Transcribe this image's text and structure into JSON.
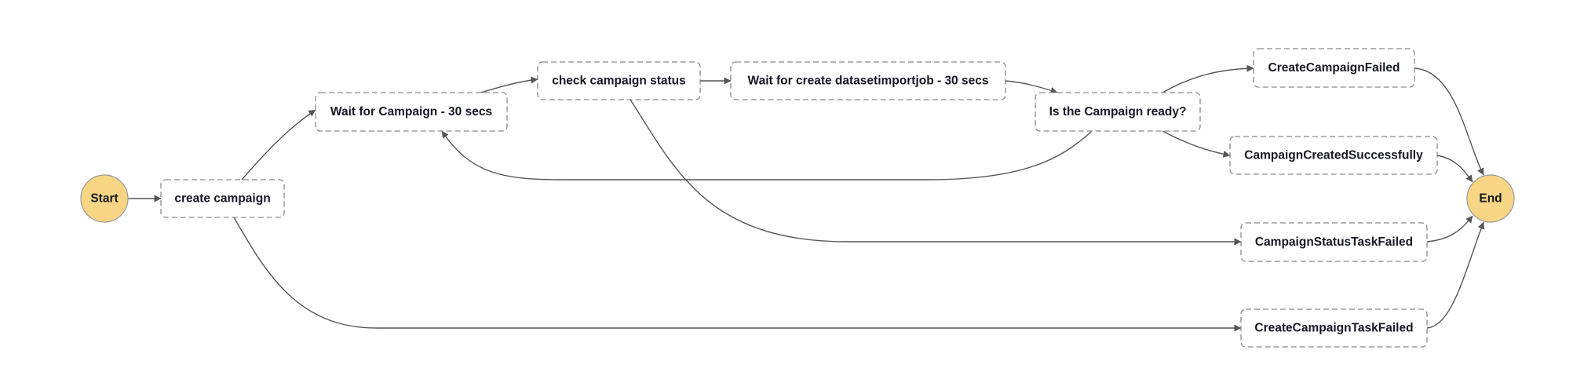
{
  "diagram": {
    "type": "state-machine-graph",
    "colors": {
      "terminal_fill": "#f7d584",
      "node_border": "#8a8a8a",
      "edge": "#555555",
      "text": "#16191f"
    },
    "nodes": [
      {
        "id": "start",
        "label": "Start",
        "kind": "terminal"
      },
      {
        "id": "create-campaign",
        "label": "create campaign",
        "kind": "state"
      },
      {
        "id": "wait-for-campaign",
        "label": "Wait for Campaign - 30 secs",
        "kind": "state"
      },
      {
        "id": "check-campaign-status",
        "label": "check campaign status",
        "kind": "state"
      },
      {
        "id": "wait-for-create-datasetimportjob",
        "label": "Wait for create datasetimportjob - 30 secs",
        "kind": "state"
      },
      {
        "id": "is-campaign-ready",
        "label": "Is the Campaign ready?",
        "kind": "choice"
      },
      {
        "id": "create-campaign-failed",
        "label": "CreateCampaignFailed",
        "kind": "state"
      },
      {
        "id": "campaign-created-successfully",
        "label": "CampaignCreatedSuccessfully",
        "kind": "state"
      },
      {
        "id": "campaign-status-task-failed",
        "label": "CampaignStatusTaskFailed",
        "kind": "state"
      },
      {
        "id": "create-campaign-task-failed",
        "label": "CreateCampaignTaskFailed",
        "kind": "state"
      },
      {
        "id": "end",
        "label": "End",
        "kind": "terminal"
      }
    ],
    "edges": [
      {
        "from": "start",
        "to": "create-campaign"
      },
      {
        "from": "create-campaign",
        "to": "wait-for-campaign"
      },
      {
        "from": "create-campaign",
        "to": "create-campaign-task-failed"
      },
      {
        "from": "wait-for-campaign",
        "to": "check-campaign-status"
      },
      {
        "from": "check-campaign-status",
        "to": "wait-for-create-datasetimportjob"
      },
      {
        "from": "check-campaign-status",
        "to": "campaign-status-task-failed"
      },
      {
        "from": "wait-for-create-datasetimportjob",
        "to": "is-campaign-ready"
      },
      {
        "from": "is-campaign-ready",
        "to": "create-campaign-failed"
      },
      {
        "from": "is-campaign-ready",
        "to": "campaign-created-successfully"
      },
      {
        "from": "is-campaign-ready",
        "to": "wait-for-campaign"
      },
      {
        "from": "create-campaign-failed",
        "to": "end"
      },
      {
        "from": "campaign-created-successfully",
        "to": "end"
      },
      {
        "from": "campaign-status-task-failed",
        "to": "end"
      },
      {
        "from": "create-campaign-task-failed",
        "to": "end"
      }
    ]
  }
}
